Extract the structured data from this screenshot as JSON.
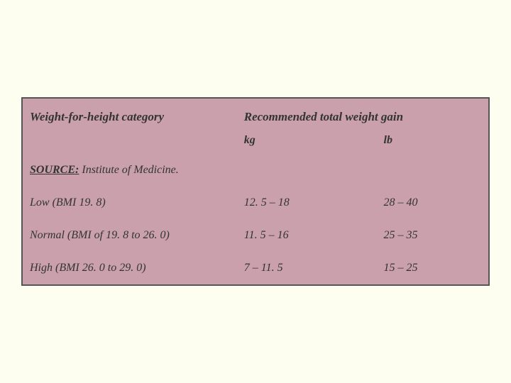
{
  "table": {
    "header_col1": "Weight-for-height category",
    "header_col2": "Recommended total weight gain",
    "unit_kg": "kg",
    "unit_lb": "lb",
    "source_label": "SOURCE:",
    "source_text": " Institute of Medicine.",
    "rows": [
      {
        "category": "Low (BMI 19. 8)",
        "kg": "12. 5 – 18",
        "lb": "28 – 40"
      },
      {
        "category": "Normal (BMI of 19. 8 to 26. 0)",
        "kg": "11. 5 – 16",
        "lb": "25 – 35"
      },
      {
        "category": "High (BMI 26. 0 to 29. 0)",
        "kg": "7 – 11. 5",
        "lb": "15 – 25"
      }
    ],
    "colors": {
      "page_background": "#fdfdf0",
      "table_background": "#c9a0ab",
      "border": "#555555",
      "text": "#333333"
    },
    "font_family": "Georgia, serif",
    "column_widths_pct": [
      46,
      30,
      24
    ]
  }
}
